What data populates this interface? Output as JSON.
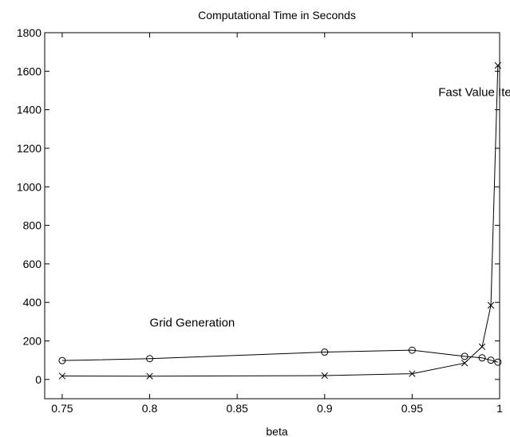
{
  "chart_data": {
    "type": "line",
    "title": "Computational Time in Seconds",
    "xlabel": "beta",
    "ylabel": "",
    "xlim": [
      0.74,
      1.0
    ],
    "ylim": [
      -100,
      1800
    ],
    "xticks": [
      0.75,
      0.8,
      0.85,
      0.9,
      0.95,
      1
    ],
    "xtick_labels": [
      "0.75",
      "0.8",
      "0.85",
      "0.9",
      "0.95",
      "1"
    ],
    "yticks": [
      0,
      200,
      400,
      600,
      800,
      1000,
      1200,
      1400,
      1600,
      1800
    ],
    "ytick_labels": [
      "0",
      "200",
      "400",
      "600",
      "800",
      "1000",
      "1200",
      "1400",
      "1600",
      "1800"
    ],
    "grid": false,
    "legend": "none",
    "annotations": [
      {
        "text": "Fast Value Iter.",
        "x": 0.965,
        "y": 1470
      },
      {
        "text": "Grid Generation",
        "x": 0.8,
        "y": 275
      }
    ],
    "series": [
      {
        "marker": "o",
        "x": [
          0.75,
          0.8,
          0.9,
          0.95,
          0.98,
          0.99,
          0.995,
          0.999
        ],
        "y": [
          98,
          108,
          142,
          152,
          120,
          112,
          100,
          90
        ]
      },
      {
        "marker": "x",
        "x": [
          0.75,
          0.8,
          0.9,
          0.95,
          0.98,
          0.99,
          0.995,
          0.999
        ],
        "y": [
          18,
          17,
          20,
          30,
          85,
          170,
          385,
          1630
        ]
      }
    ]
  }
}
